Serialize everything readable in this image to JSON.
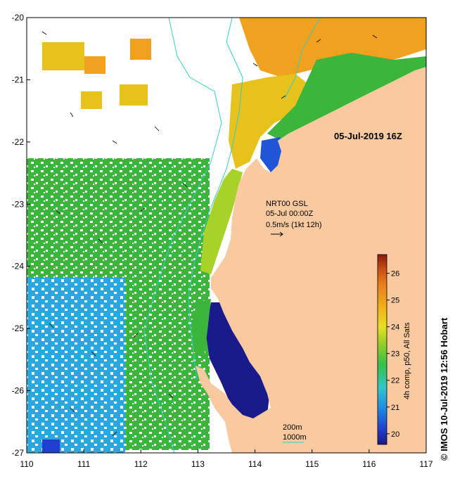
{
  "map": {
    "timestamp": "05-Jul-2019 16Z",
    "current_source": "NRT00 GSL",
    "current_date": "05-Jul 00:00Z",
    "current_scale": "0.5m/s (1kt 12h)",
    "isobath_1": "200m",
    "isobath_2": "1000m",
    "credit": "© IMOS 10-Jul-2019 12:56 Hobart",
    "colorbar_title": "4h comp, p50, All Sats",
    "land_color": "#f9c9a0",
    "isobath_color": "#33cccc"
  },
  "axes": {
    "lon_ticks": [
      "110",
      "111",
      "112",
      "113",
      "114",
      "115",
      "116",
      "117"
    ],
    "lat_ticks": [
      "-20",
      "-21",
      "-22",
      "-23",
      "-24",
      "-25",
      "-26",
      "-27"
    ],
    "lon_range": [
      110,
      117
    ],
    "lat_range": [
      -27,
      -20
    ]
  },
  "colorbar": {
    "ticks": [
      "20",
      "21",
      "22",
      "23",
      "24",
      "25",
      "26"
    ],
    "range": [
      19.6,
      26.7
    ],
    "colors": [
      "#1a1a8c",
      "#1f3fd0",
      "#1e90e6",
      "#2ec8c8",
      "#33c24a",
      "#8ccc2a",
      "#e6e01e",
      "#f2b11a",
      "#e8801a",
      "#c44a12",
      "#8b1a0e"
    ]
  }
}
